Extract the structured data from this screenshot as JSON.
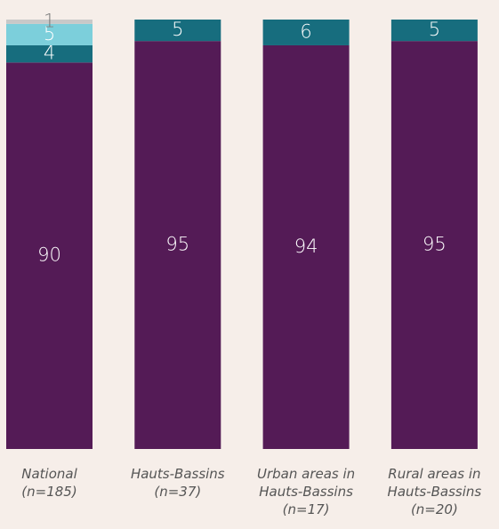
{
  "chart_data": {
    "type": "stacked_bar",
    "categories": [
      [
        "National",
        "(n=185)"
      ],
      [
        "Hauts-Bassins",
        "(n=37)"
      ],
      [
        "Urban areas in",
        "Hauts-Bassins",
        "(n=17)"
      ],
      [
        "Rural areas in",
        "Hauts-Bassins",
        "(n=20)"
      ]
    ],
    "series": [
      {
        "color": "#541b56",
        "label_color": "#ffffff",
        "values": [
          90,
          95,
          94,
          95
        ]
      },
      {
        "color": "#176d7e",
        "label_color": "#ffffff",
        "values": [
          4,
          5,
          6,
          5
        ]
      },
      {
        "color": "#7ccfdb",
        "label_color": "#ffffff",
        "values": [
          5,
          null,
          null,
          null
        ]
      },
      {
        "color": "#c8c8c8",
        "label_color": "#777777",
        "values": [
          1,
          null,
          null,
          null
        ]
      }
    ],
    "ylim": [
      0,
      100
    ]
  }
}
